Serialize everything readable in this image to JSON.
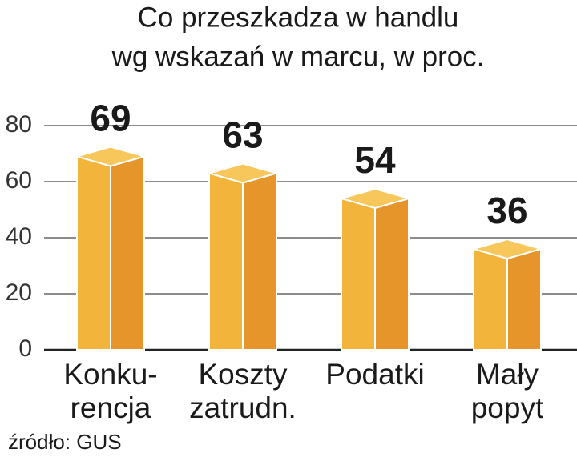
{
  "chart_data": {
    "type": "bar3d",
    "title": [
      "Co przeszkadza w handlu",
      "wg wskazań w marcu, w proc."
    ],
    "categories": [
      [
        "Konku-",
        "rencja"
      ],
      [
        "Koszty",
        "zatrudn."
      ],
      [
        "Podatki"
      ],
      [
        "Mały",
        "popyt"
      ]
    ],
    "values": [
      69,
      63,
      54,
      36
    ],
    "colors": {
      "front": "#f3b43c",
      "side": "#e6952a",
      "top": "#f8c75c"
    },
    "ylim": [
      0,
      80
    ],
    "yticks": [
      0,
      20,
      40,
      60,
      80
    ],
    "grid": true,
    "source": "źródło: GUS"
  }
}
